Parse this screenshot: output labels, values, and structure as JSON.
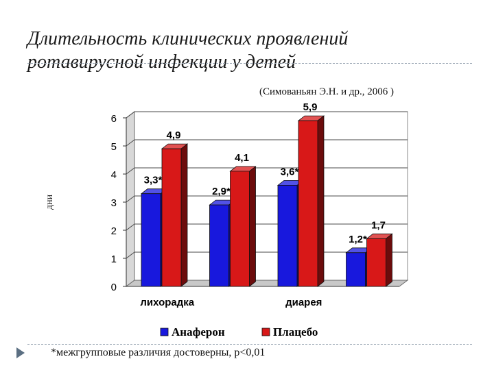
{
  "header": {
    "title": "Длительность клинических проявлений ротавирусной инфекции у детей",
    "source": "(Симованьян Э.Н. и др., 2006 )"
  },
  "footnote": "*межгрупповые различия достоверны, p<0,01",
  "chart_data": {
    "type": "bar",
    "title": "",
    "ylabel": "дни",
    "xlabel": "",
    "ylim": [
      0,
      6
    ],
    "yticks": [
      0,
      1,
      2,
      3,
      4,
      5,
      6
    ],
    "grid": true,
    "legend": "bottom",
    "categories": [
      "лихорадка",
      "",
      "диарея",
      ""
    ],
    "series": [
      {
        "name": "Анаферон",
        "color": "#1818dd",
        "values": [
          3.3,
          2.9,
          3.6,
          1.2
        ],
        "labels": [
          "3,3*",
          "2,9*",
          "3,6*",
          "1,2*"
        ]
      },
      {
        "name": "Плацебо",
        "color": "#d81818",
        "values": [
          4.9,
          4.1,
          5.9,
          1.7
        ],
        "labels": [
          "4,9",
          "4,1",
          "5,9",
          "1,7"
        ]
      }
    ]
  }
}
